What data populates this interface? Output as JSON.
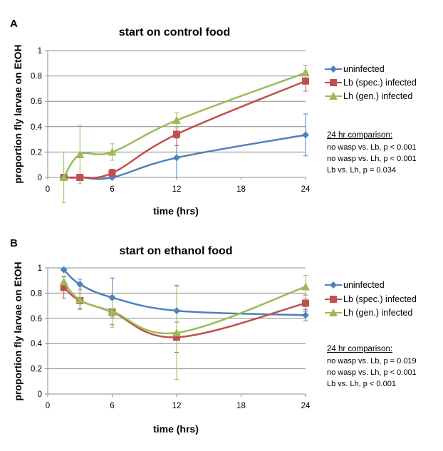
{
  "chart_data": [
    {
      "type": "line",
      "panel": "A",
      "title": "start on control food",
      "xlabel": "time (hrs)",
      "ylabel": "proportion fly larvae on EtOH",
      "xlim": [
        0,
        24
      ],
      "ylim": [
        0,
        1
      ],
      "xticks": [
        0,
        6,
        12,
        18,
        24
      ],
      "yticks": [
        0,
        0.2,
        0.4,
        0.6,
        0.8,
        1
      ],
      "xtick_labels": [
        "0",
        "6",
        "12",
        "18",
        "24"
      ],
      "ytick_labels": [
        "0",
        "0.2",
        "0.4",
        "0.6",
        "0.8",
        "1"
      ],
      "series": [
        {
          "name": "uninfected",
          "color": "#4f81bd",
          "marker": "diamond",
          "x": [
            1.5,
            3,
            6,
            12,
            24
          ],
          "y": [
            0.0,
            0.0,
            0.0,
            0.155,
            0.335
          ],
          "err": [
            0,
            0,
            0,
            0.155,
            0.165
          ]
        },
        {
          "name": "Lb (spec.) infected",
          "color": "#c0504d",
          "marker": "square",
          "x": [
            1.5,
            3,
            6,
            12,
            24
          ],
          "y": [
            0.0,
            0.0,
            0.035,
            0.34,
            0.76
          ],
          "err": [
            0,
            0,
            0.03,
            0.09,
            0.08
          ]
        },
        {
          "name": "Lh (gen.) infected",
          "color": "#9bbb59",
          "marker": "triangle",
          "x": [
            1.5,
            3,
            6,
            12,
            24
          ],
          "y": [
            0.0,
            0.18,
            0.2,
            0.45,
            0.825
          ],
          "err": [
            0.2,
            0.23,
            0.065,
            0.06,
            0.06
          ]
        }
      ],
      "legend": [
        "uninfected",
        "Lb (spec.) infected",
        "Lh (gen.) infected"
      ],
      "note": {
        "heading": "24 hr comparison:",
        "lines": [
          "no wasp vs. Lb, p < 0.001",
          "no wasp vs. Lh, p < 0.001",
          "Lb vs. Lh, p = 0.034"
        ]
      }
    },
    {
      "type": "line",
      "panel": "B",
      "title": "start on ethanol food",
      "xlabel": "time (hrs)",
      "ylabel": "proportion fly larvae on EtOH",
      "xlim": [
        0,
        24
      ],
      "ylim": [
        0,
        1
      ],
      "xticks": [
        0,
        6,
        12,
        18,
        24
      ],
      "yticks": [
        0,
        0.2,
        0.4,
        0.6,
        0.8,
        1
      ],
      "xtick_labels": [
        "0",
        "6",
        "12",
        "18",
        "24"
      ],
      "ytick_labels": [
        "0",
        "0.2",
        "0.4",
        "0.6",
        "0.8",
        "1"
      ],
      "series": [
        {
          "name": "uninfected",
          "color": "#4f81bd",
          "marker": "diamond",
          "x": [
            1.5,
            3,
            6,
            12,
            24
          ],
          "y": [
            0.985,
            0.87,
            0.765,
            0.66,
            0.625
          ],
          "err": [
            0,
            0.04,
            0.155,
            0.2,
            0.045
          ]
        },
        {
          "name": "Lb (spec.) infected",
          "color": "#c0504d",
          "marker": "square",
          "x": [
            1.5,
            3,
            6,
            12,
            24
          ],
          "y": [
            0.845,
            0.74,
            0.65,
            0.45,
            0.72
          ],
          "err": [
            0.085,
            0.06,
            0.1,
            0.12,
            0.065
          ]
        },
        {
          "name": "Lh (gen.) infected",
          "color": "#9bbb59",
          "marker": "triangle",
          "x": [
            1.5,
            3,
            6,
            12,
            24
          ],
          "y": [
            0.89,
            0.745,
            0.655,
            0.485,
            0.85
          ],
          "err": [
            0.045,
            0.075,
            0.125,
            0.37,
            0.09
          ]
        }
      ],
      "legend": [
        "uninfected",
        "Lb (spec.) infected",
        "Lh (gen.) infected"
      ],
      "note": {
        "heading": "24 hr comparison:",
        "lines": [
          "no wasp vs. Lb, p = 0.019",
          "no wasp vs. Lh, p < 0.001",
          "Lb vs. Lh, p < 0.001"
        ]
      }
    }
  ]
}
